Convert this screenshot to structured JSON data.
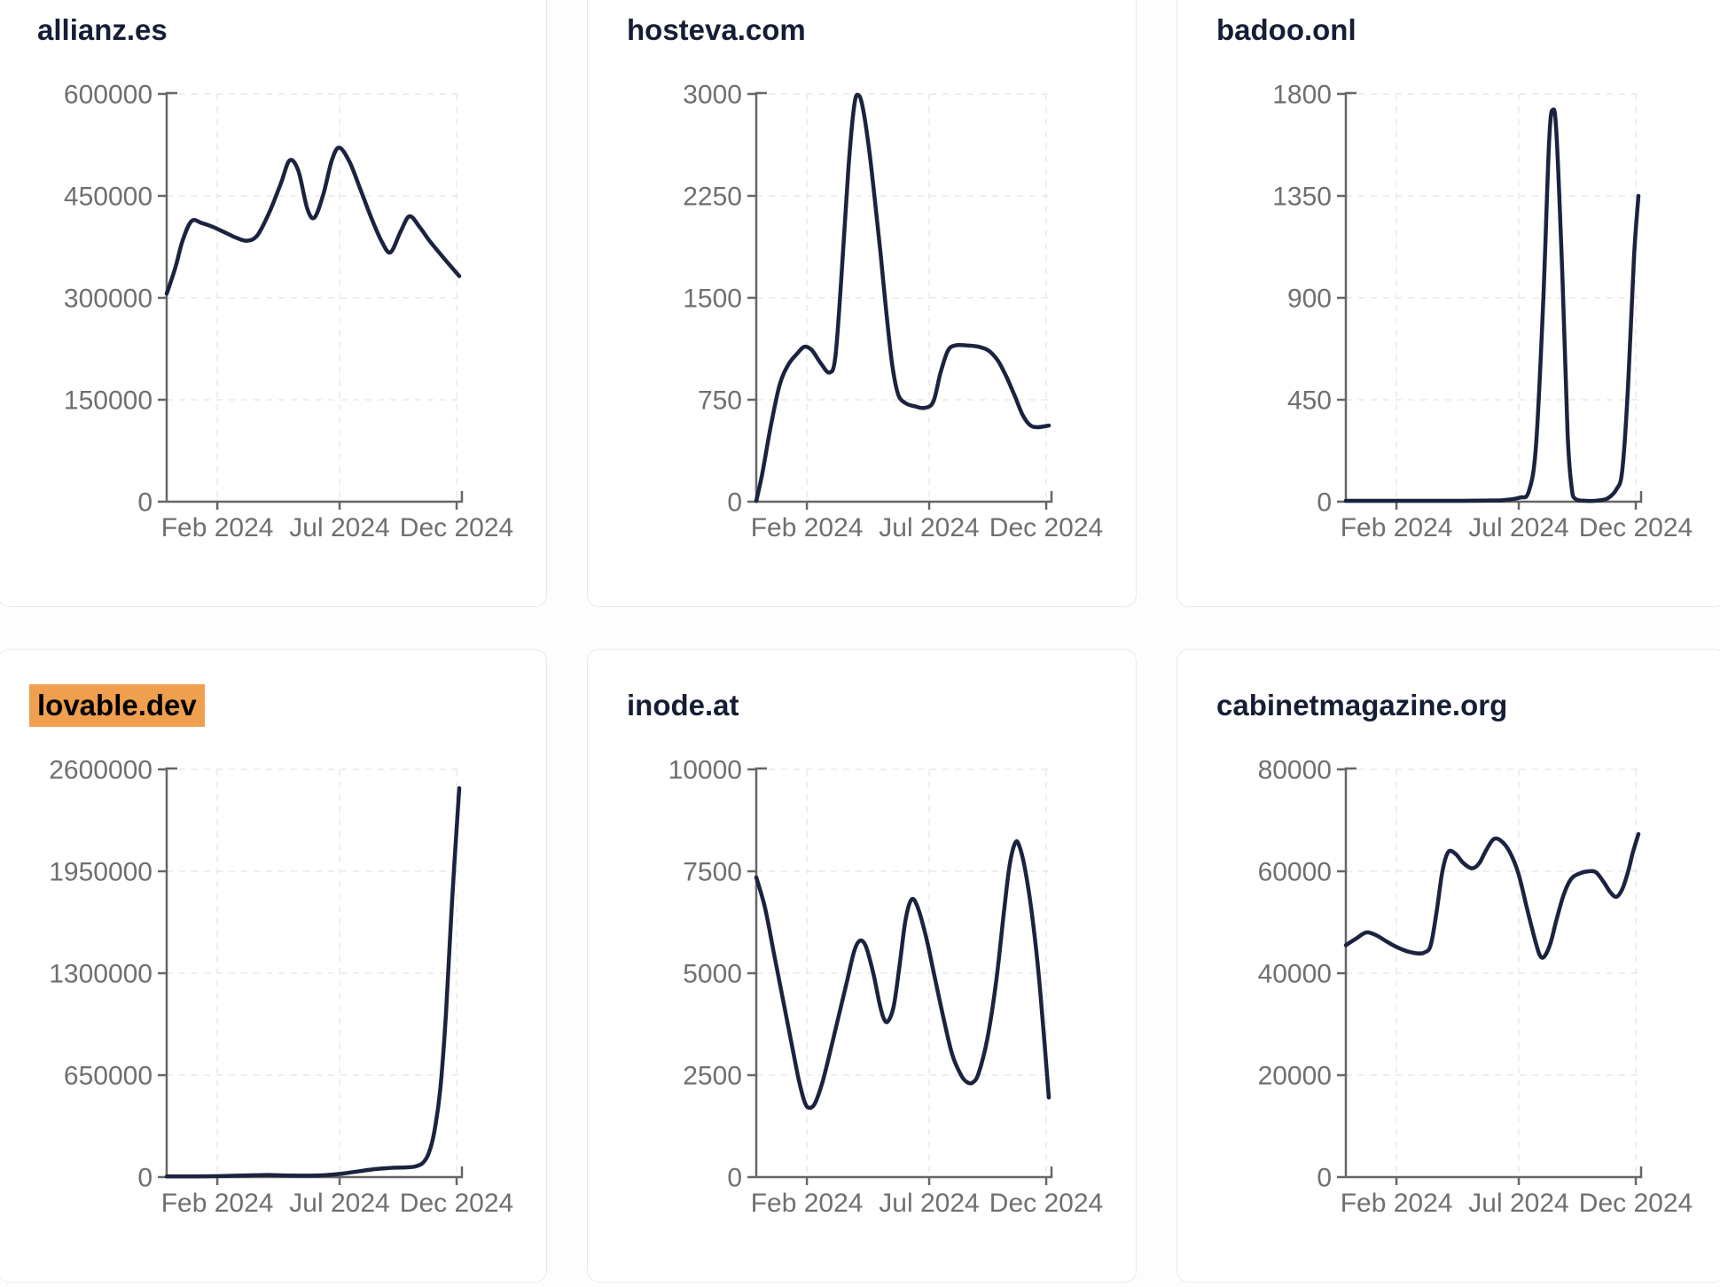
{
  "page": {
    "background": "#fdfdfe",
    "card_background": "#ffffff",
    "card_border": "#e7e9f2",
    "line_color": "#1b2340",
    "axis_color": "#666666",
    "label_color": "#6f6f6f",
    "grid_color": "#e9e9ed",
    "title_color": "#161e36",
    "highlight_color": "#ef9f4e"
  },
  "chart_data": [
    {
      "type": "line",
      "title": "allianz.es",
      "highlighted": false,
      "legend": "none",
      "grid": "dashed",
      "y_ticks": [
        0,
        150000,
        300000,
        450000,
        600000
      ],
      "y_max": 600000,
      "x_tick_labels": [
        "Feb 2024",
        "Jul 2024",
        "Dec 2024"
      ],
      "x_tick_positions": [
        0.173,
        0.591,
        0.991
      ],
      "points": [
        [
          0,
          306000
        ],
        [
          0.03,
          345000
        ],
        [
          0.055,
          385000
        ],
        [
          0.085,
          413000
        ],
        [
          0.12,
          410000
        ],
        [
          0.16,
          404000
        ],
        [
          0.2,
          396000
        ],
        [
          0.24,
          388000
        ],
        [
          0.275,
          384000
        ],
        [
          0.31,
          392000
        ],
        [
          0.35,
          425000
        ],
        [
          0.39,
          468000
        ],
        [
          0.42,
          502000
        ],
        [
          0.45,
          487000
        ],
        [
          0.48,
          432000
        ],
        [
          0.505,
          418000
        ],
        [
          0.535,
          452000
        ],
        [
          0.565,
          503000
        ],
        [
          0.59,
          521000
        ],
        [
          0.625,
          500000
        ],
        [
          0.66,
          462000
        ],
        [
          0.7,
          417000
        ],
        [
          0.735,
          383000
        ],
        [
          0.765,
          367000
        ],
        [
          0.8,
          398000
        ],
        [
          0.83,
          420000
        ],
        [
          0.865,
          404000
        ],
        [
          0.9,
          383000
        ],
        [
          0.95,
          357000
        ],
        [
          1,
          332000
        ]
      ]
    },
    {
      "type": "line",
      "title": "hosteva.com",
      "highlighted": false,
      "legend": "none",
      "grid": "dashed",
      "y_ticks": [
        0,
        750,
        1500,
        2250,
        3000
      ],
      "y_max": 3000,
      "x_tick_labels": [
        "Feb 2024",
        "Jul 2024",
        "Dec 2024"
      ],
      "x_tick_positions": [
        0.173,
        0.591,
        0.991
      ],
      "points": [
        [
          0,
          5
        ],
        [
          0.02,
          200
        ],
        [
          0.05,
          560
        ],
        [
          0.08,
          860
        ],
        [
          0.11,
          1010
        ],
        [
          0.14,
          1090
        ],
        [
          0.165,
          1140
        ],
        [
          0.19,
          1115
        ],
        [
          0.22,
          1020
        ],
        [
          0.25,
          950
        ],
        [
          0.27,
          1060
        ],
        [
          0.29,
          1620
        ],
        [
          0.315,
          2450
        ],
        [
          0.335,
          2920
        ],
        [
          0.35,
          2990
        ],
        [
          0.365,
          2890
        ],
        [
          0.385,
          2600
        ],
        [
          0.405,
          2230
        ],
        [
          0.425,
          1820
        ],
        [
          0.445,
          1380
        ],
        [
          0.465,
          1000
        ],
        [
          0.485,
          790
        ],
        [
          0.51,
          725
        ],
        [
          0.545,
          700
        ],
        [
          0.575,
          690
        ],
        [
          0.605,
          735
        ],
        [
          0.63,
          950
        ],
        [
          0.655,
          1110
        ],
        [
          0.68,
          1150
        ],
        [
          0.72,
          1150
        ],
        [
          0.76,
          1140
        ],
        [
          0.795,
          1110
        ],
        [
          0.825,
          1040
        ],
        [
          0.855,
          920
        ],
        [
          0.885,
          770
        ],
        [
          0.91,
          640
        ],
        [
          0.935,
          565
        ],
        [
          0.96,
          548
        ],
        [
          1,
          560
        ]
      ]
    },
    {
      "type": "line",
      "title": "badoo.onl",
      "highlighted": false,
      "legend": "none",
      "grid": "dashed",
      "y_ticks": [
        0,
        450,
        900,
        1350,
        1800
      ],
      "y_max": 1800,
      "x_tick_labels": [
        "Feb 2024",
        "Jul 2024",
        "Dec 2024"
      ],
      "x_tick_positions": [
        0.173,
        0.591,
        0.991
      ],
      "points": [
        [
          0,
          4
        ],
        [
          0.08,
          4
        ],
        [
          0.16,
          4
        ],
        [
          0.24,
          4
        ],
        [
          0.32,
          4
        ],
        [
          0.4,
          4
        ],
        [
          0.48,
          5
        ],
        [
          0.54,
          7
        ],
        [
          0.595,
          18
        ],
        [
          0.625,
          45
        ],
        [
          0.65,
          250
        ],
        [
          0.675,
          900
        ],
        [
          0.695,
          1600
        ],
        [
          0.708,
          1730
        ],
        [
          0.72,
          1620
        ],
        [
          0.74,
          1000
        ],
        [
          0.758,
          300
        ],
        [
          0.772,
          60
        ],
        [
          0.785,
          12
        ],
        [
          0.82,
          4
        ],
        [
          0.86,
          5
        ],
        [
          0.895,
          15
        ],
        [
          0.925,
          55
        ],
        [
          0.945,
          140
        ],
        [
          0.965,
          520
        ],
        [
          0.985,
          1080
        ],
        [
          1,
          1350
        ]
      ]
    },
    {
      "type": "line",
      "title": "lovable.dev",
      "highlighted": true,
      "legend": "none",
      "grid": "dashed",
      "y_ticks": [
        0,
        650000,
        1300000,
        1950000,
        2600000
      ],
      "y_max": 2600000,
      "x_tick_labels": [
        "Feb 2024",
        "Jul 2024",
        "Dec 2024"
      ],
      "x_tick_positions": [
        0.173,
        0.591,
        0.991
      ],
      "points": [
        [
          0,
          4000
        ],
        [
          0.06,
          4500
        ],
        [
          0.12,
          5000
        ],
        [
          0.18,
          6500
        ],
        [
          0.24,
          9000
        ],
        [
          0.3,
          12000
        ],
        [
          0.36,
          13000
        ],
        [
          0.42,
          10000
        ],
        [
          0.48,
          9000
        ],
        [
          0.54,
          12000
        ],
        [
          0.6,
          22000
        ],
        [
          0.66,
          38000
        ],
        [
          0.72,
          52000
        ],
        [
          0.78,
          60000
        ],
        [
          0.82,
          62000
        ],
        [
          0.85,
          68000
        ],
        [
          0.875,
          90000
        ],
        [
          0.895,
          150000
        ],
        [
          0.915,
          290000
        ],
        [
          0.935,
          560000
        ],
        [
          0.955,
          1050000
        ],
        [
          0.975,
          1750000
        ],
        [
          1,
          2480000
        ]
      ]
    },
    {
      "type": "line",
      "title": "inode.at",
      "highlighted": false,
      "legend": "none",
      "grid": "dashed",
      "y_ticks": [
        0,
        2500,
        5000,
        7500,
        10000
      ],
      "y_max": 10000,
      "x_tick_labels": [
        "Feb 2024",
        "Jul 2024",
        "Dec 2024"
      ],
      "x_tick_positions": [
        0.173,
        0.591,
        0.991
      ],
      "points": [
        [
          0,
          7350
        ],
        [
          0.03,
          6600
        ],
        [
          0.06,
          5500
        ],
        [
          0.09,
          4400
        ],
        [
          0.12,
          3300
        ],
        [
          0.145,
          2400
        ],
        [
          0.165,
          1850
        ],
        [
          0.18,
          1700
        ],
        [
          0.2,
          1800
        ],
        [
          0.225,
          2300
        ],
        [
          0.25,
          3000
        ],
        [
          0.28,
          3900
        ],
        [
          0.31,
          4800
        ],
        [
          0.335,
          5550
        ],
        [
          0.355,
          5800
        ],
        [
          0.375,
          5650
        ],
        [
          0.4,
          5000
        ],
        [
          0.42,
          4300
        ],
        [
          0.435,
          3900
        ],
        [
          0.45,
          3820
        ],
        [
          0.47,
          4200
        ],
        [
          0.49,
          5200
        ],
        [
          0.51,
          6300
        ],
        [
          0.53,
          6800
        ],
        [
          0.55,
          6650
        ],
        [
          0.58,
          5900
        ],
        [
          0.61,
          4900
        ],
        [
          0.64,
          3900
        ],
        [
          0.67,
          3000
        ],
        [
          0.7,
          2500
        ],
        [
          0.72,
          2330
        ],
        [
          0.74,
          2320
        ],
        [
          0.76,
          2550
        ],
        [
          0.79,
          3400
        ],
        [
          0.82,
          4800
        ],
        [
          0.845,
          6400
        ],
        [
          0.865,
          7600
        ],
        [
          0.885,
          8200
        ],
        [
          0.9,
          8100
        ],
        [
          0.92,
          7500
        ],
        [
          0.945,
          6300
        ],
        [
          0.97,
          4600
        ],
        [
          1,
          1950
        ]
      ]
    },
    {
      "type": "line",
      "title": "cabinetmagazine.org",
      "highlighted": false,
      "legend": "none",
      "grid": "dashed",
      "y_ticks": [
        0,
        20000,
        40000,
        60000,
        80000
      ],
      "y_max": 80000,
      "x_tick_labels": [
        "Feb 2024",
        "Jul 2024",
        "Dec 2024"
      ],
      "x_tick_positions": [
        0.173,
        0.591,
        0.991
      ],
      "points": [
        [
          0,
          45500
        ],
        [
          0.035,
          46800
        ],
        [
          0.07,
          48000
        ],
        [
          0.105,
          47400
        ],
        [
          0.14,
          46200
        ],
        [
          0.175,
          45100
        ],
        [
          0.21,
          44300
        ],
        [
          0.245,
          43900
        ],
        [
          0.27,
          44100
        ],
        [
          0.29,
          45500
        ],
        [
          0.31,
          52000
        ],
        [
          0.33,
          60000
        ],
        [
          0.35,
          63800
        ],
        [
          0.375,
          63400
        ],
        [
          0.4,
          61700
        ],
        [
          0.43,
          60600
        ],
        [
          0.455,
          61500
        ],
        [
          0.48,
          64200
        ],
        [
          0.505,
          66300
        ],
        [
          0.53,
          66000
        ],
        [
          0.56,
          63800
        ],
        [
          0.59,
          59500
        ],
        [
          0.62,
          52500
        ],
        [
          0.65,
          45800
        ],
        [
          0.665,
          43300
        ],
        [
          0.68,
          43400
        ],
        [
          0.7,
          46000
        ],
        [
          0.72,
          50500
        ],
        [
          0.745,
          55500
        ],
        [
          0.77,
          58500
        ],
        [
          0.8,
          59600
        ],
        [
          0.83,
          60000
        ],
        [
          0.855,
          59800
        ],
        [
          0.88,
          58000
        ],
        [
          0.905,
          55800
        ],
        [
          0.925,
          55000
        ],
        [
          0.945,
          56500
        ],
        [
          0.965,
          60000
        ],
        [
          0.98,
          63500
        ],
        [
          1,
          67300
        ]
      ]
    }
  ]
}
